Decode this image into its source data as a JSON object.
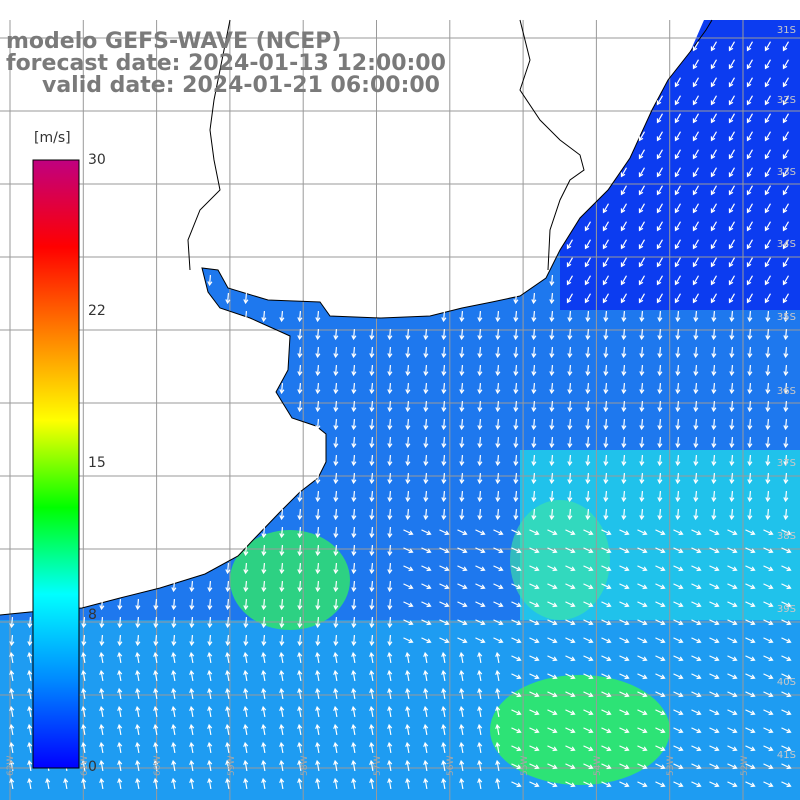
{
  "title": {
    "line1": "modelo GEFS-WAVE (NCEP)",
    "line2": "forecast date: 2024-01-13 12:00:00",
    "line3": "valid date: 2024-01-21 06:00:00"
  },
  "colorbar": {
    "unit": "[m/s]",
    "ticks": [
      "30",
      "22",
      "15",
      "8",
      "0"
    ],
    "range": [
      0,
      30
    ],
    "colors": [
      "#0000ff",
      "#0088ff",
      "#00ffff",
      "#00ff00",
      "#ffff00",
      "#ff8000",
      "#ff0000",
      "#c00080"
    ]
  },
  "axes": {
    "lat_labels": [
      "31S",
      "32S",
      "33S",
      "34S",
      "35S",
      "36S",
      "37S",
      "38S",
      "39S",
      "40S",
      "41S"
    ],
    "lon_labels": [
      "62W",
      "61W",
      "60W",
      "59W",
      "58W",
      "57W",
      "56W",
      "55W",
      "54W",
      "53W",
      "52W"
    ]
  },
  "map": {
    "region": "Rio de la Plata / Uruguay / Argentine coast",
    "field": "wind speed with direction arrows",
    "land_color": "#ffffff",
    "grid_color": "#9a9a9a",
    "coast_color": "#000000",
    "arrow_color": "#ffffff"
  }
}
